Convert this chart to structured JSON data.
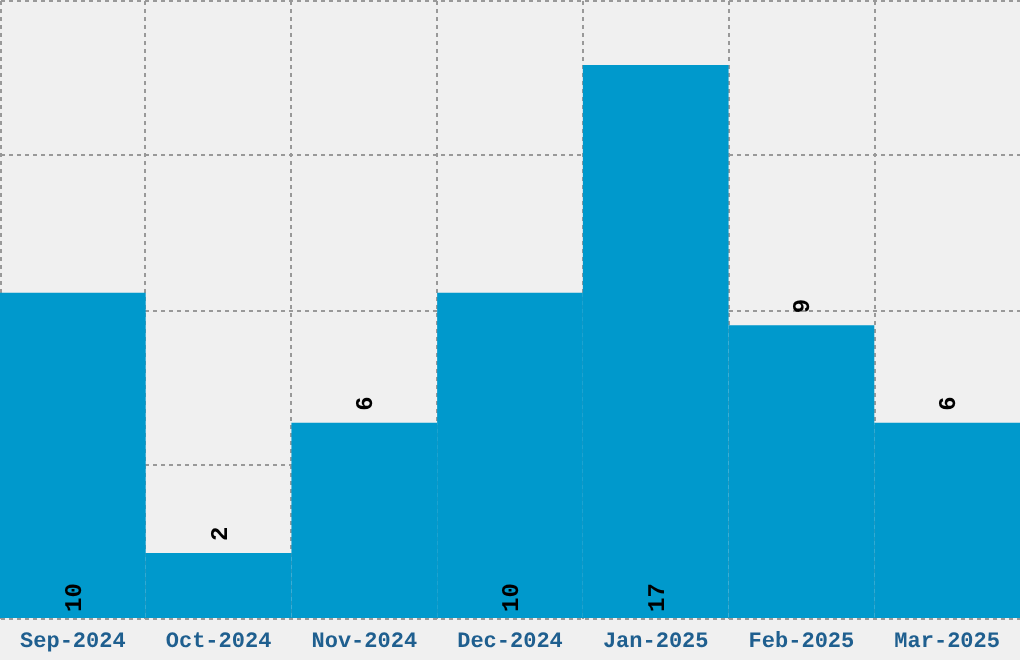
{
  "chart_data": {
    "type": "bar",
    "categories": [
      "Sep-2024",
      "Oct-2024",
      "Nov-2024",
      "Dec-2024",
      "Jan-2025",
      "Feb-2025",
      "Mar-2025"
    ],
    "values": [
      10,
      2,
      6,
      10,
      17,
      9,
      6
    ],
    "color": "#0099cc",
    "ylim": [
      0,
      19
    ],
    "yticks": [
      {
        "value": 0,
        "label": null
      },
      {
        "value": 4.75,
        "label": null
      },
      {
        "value": 9.5,
        "label": null
      },
      {
        "value": 14.25,
        "label": null
      },
      {
        "value": 19,
        "label": null
      }
    ],
    "tick_labels": "x",
    "grid": true,
    "data_labels": true
  }
}
